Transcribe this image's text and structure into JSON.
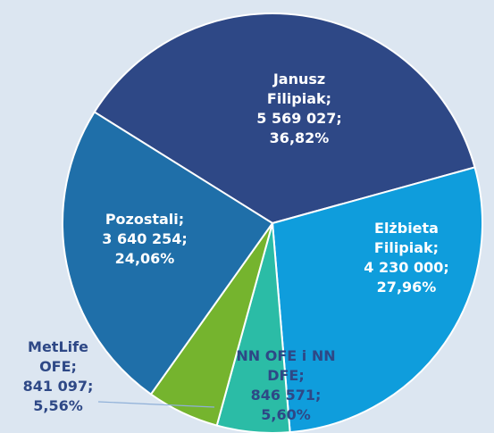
{
  "chart_data": {
    "type": "pie",
    "categories": [
      "Janusz Filipiak;",
      "Elżbieta Filipiak;",
      "NN OFE i NN DFE;",
      "MetLife OFE;",
      "Pozostali;"
    ],
    "values": [
      5569027,
      4230000,
      846571,
      841097,
      3640254
    ],
    "value_labels": [
      "5 569 027;",
      "4 230 000;",
      "846 571;",
      "841 097;",
      "3 640 254;"
    ],
    "percents": [
      36.82,
      27.96,
      5.6,
      5.56,
      24.06
    ],
    "percent_labels": [
      "36,82%",
      "27,96%",
      "5,60%",
      "5,56%",
      "24,06%"
    ],
    "colors": [
      "#2e4886",
      "#0f9ddc",
      "#2bbca6",
      "#75b42e",
      "#1f6fa9"
    ]
  }
}
